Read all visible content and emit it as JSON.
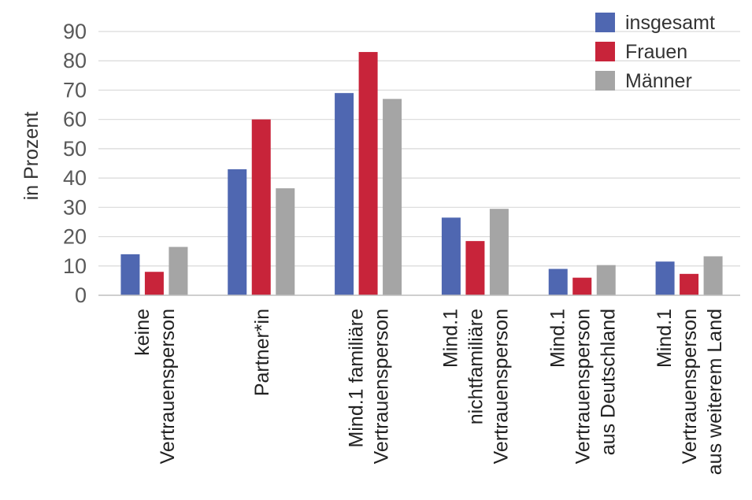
{
  "chart_data": {
    "type": "bar",
    "title": "",
    "xlabel": "",
    "ylabel": "in Prozent",
    "ylim": [
      0,
      90
    ],
    "yticks": [
      0,
      10,
      20,
      30,
      40,
      50,
      60,
      70,
      80,
      90
    ],
    "grid": true,
    "legend_position": "top-right",
    "categories": [
      [
        "keine",
        "Vertrauensperson"
      ],
      [
        "Partner*in"
      ],
      [
        "Mind.1 familiäre",
        "Vertrauensperson"
      ],
      [
        "Mind.1",
        "nichtfamiliäre",
        "Vertrauensperson"
      ],
      [
        "Mind.1",
        "Vertrauensperson",
        "aus Deutschland"
      ],
      [
        "Mind.1",
        "Vertrauensperson",
        "aus weiterem Land"
      ]
    ],
    "series": [
      {
        "name": "insgesamt",
        "color": "#4F67B1",
        "values": [
          14,
          43,
          69,
          26.5,
          9,
          11.5
        ]
      },
      {
        "name": "Frauen",
        "color": "#C8243A",
        "values": [
          8,
          60,
          83,
          18.5,
          6,
          7.3
        ]
      },
      {
        "name": "Männer",
        "color": "#A5A5A5",
        "values": [
          16.5,
          36.5,
          67,
          29.5,
          10.3,
          13.3
        ]
      }
    ]
  }
}
